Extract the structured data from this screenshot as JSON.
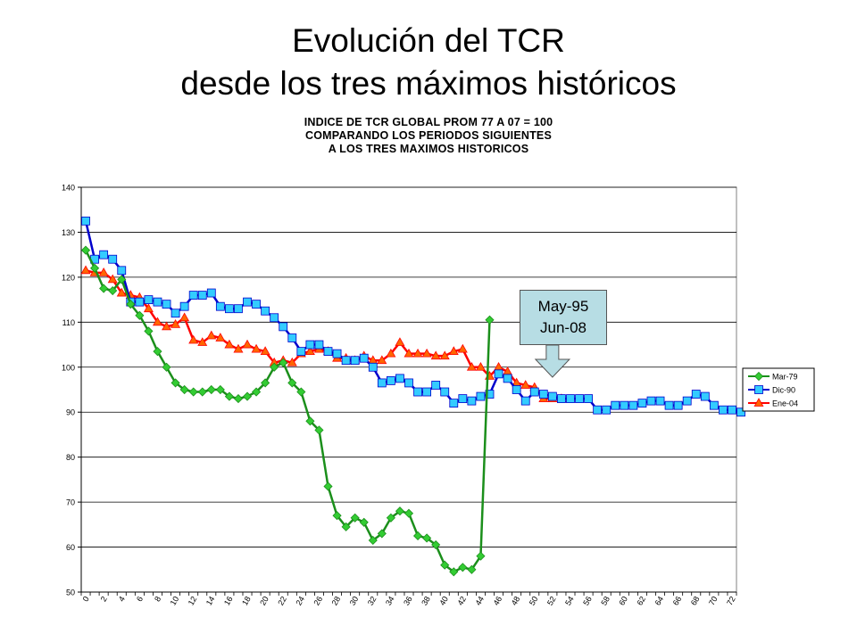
{
  "slide": {
    "title_line1": "Evolución del TCR",
    "title_line2": "desde los tres máximos históricos"
  },
  "chart_data": {
    "type": "line",
    "title_lines": [
      "INDICE DE TCR GLOBAL PROM 77 A 07 = 100",
      "COMPARANDO LOS PERIODOS SIGUIENTES",
      "A LOS TRES MAXIMOS HISTORICOS"
    ],
    "xlabel": "",
    "ylabel": "",
    "ylim": [
      50,
      140
    ],
    "yticks": [
      50,
      60,
      70,
      80,
      90,
      100,
      110,
      120,
      130,
      140
    ],
    "xlim": [
      0,
      73
    ],
    "xticks": [
      0,
      2,
      4,
      6,
      8,
      10,
      12,
      14,
      16,
      18,
      20,
      22,
      24,
      26,
      28,
      30,
      32,
      34,
      36,
      38,
      40,
      42,
      44,
      46,
      48,
      50,
      52,
      54,
      56,
      58,
      60,
      62,
      64,
      66,
      68,
      70,
      72
    ],
    "grid": true,
    "legend_position": "right",
    "annotation": {
      "line1": "May-95",
      "line2": "Jun-08",
      "arrow_x": 52
    },
    "series": [
      {
        "name": "Mar-79",
        "color": "#1b8f1b",
        "marker": "diamond",
        "marker_color": "#33cc33",
        "values": [
          126.0,
          122.0,
          117.5,
          117.0,
          119.5,
          114.0,
          111.5,
          108.0,
          103.5,
          100.0,
          96.5,
          95.0,
          94.5,
          94.5,
          95.0,
          95.0,
          93.5,
          93.0,
          93.5,
          94.5,
          96.5,
          100.0,
          101.0,
          96.5,
          94.5,
          88.0,
          86.0,
          73.5,
          67.0,
          64.5,
          66.5,
          65.5,
          61.5,
          63.0,
          66.5,
          68.0,
          67.5,
          62.5,
          62.0,
          60.5,
          56.0,
          54.5,
          55.5,
          55.0,
          58.0,
          110.5
        ]
      },
      {
        "name": "Dic-90",
        "color": "#0000cc",
        "marker": "square",
        "marker_color": "#33ccff",
        "values": [
          132.5,
          124.0,
          125.0,
          124.0,
          121.5,
          114.5,
          114.5,
          115.0,
          114.5,
          114.0,
          112.0,
          113.5,
          116.0,
          116.0,
          116.5,
          113.5,
          113.0,
          113.0,
          114.5,
          114.0,
          112.5,
          111.0,
          109.0,
          106.5,
          103.5,
          105.0,
          105.0,
          103.5,
          103.0,
          101.5,
          101.5,
          102.0,
          100.0,
          96.5,
          97.0,
          97.5,
          96.5,
          94.5,
          94.5,
          96.0,
          94.5,
          92.0,
          93.0,
          92.5,
          93.5,
          94.0,
          98.5,
          97.5,
          95.0,
          92.5,
          94.5,
          94.0,
          93.5,
          93.0,
          93.0,
          93.0,
          93.0,
          90.5,
          90.5,
          91.5,
          91.5,
          91.5,
          92.0,
          92.5,
          92.5,
          91.5,
          91.5,
          92.5,
          94.0,
          93.5,
          91.5,
          90.5,
          90.5,
          90.0
        ]
      },
      {
        "name": "Ene-04",
        "color": "#ff0000",
        "marker": "triangle",
        "marker_color": "#ff6600",
        "values": [
          121.5,
          121.0,
          121.0,
          119.5,
          116.5,
          116.0,
          115.5,
          113.0,
          110.0,
          109.0,
          109.5,
          111.0,
          106.0,
          105.5,
          107.0,
          106.5,
          105.0,
          104.0,
          105.0,
          104.0,
          103.5,
          101.0,
          101.5,
          101.0,
          103.0,
          103.5,
          104.0,
          103.5,
          102.0,
          102.0,
          101.5,
          102.5,
          101.5,
          101.5,
          103.0,
          105.5,
          103.0,
          103.0,
          103.0,
          102.5,
          102.5,
          103.5,
          104.0,
          100.0,
          100.0,
          98.0,
          100.0,
          99.0,
          96.5,
          96.0,
          95.5,
          93.0,
          93.0,
          93.0
        ]
      }
    ]
  }
}
